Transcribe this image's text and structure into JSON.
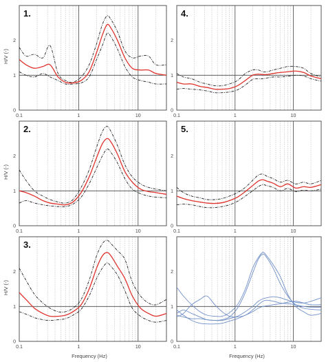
{
  "figure": {
    "ylabel": "H/V (-)",
    "xlabel": "Frequency (Hz)",
    "colors": {
      "mean": "#e0302a",
      "bounds": "#222222",
      "reference": "#444444",
      "grid": "#b9b9b9",
      "frame": "#444444",
      "individual": "#6f8fc9"
    }
  },
  "chart_data": [
    {
      "type": "line",
      "label": "1.",
      "xscale": "log",
      "xlim": [
        0.1,
        30
      ],
      "ylim": [
        0,
        3
      ],
      "yticks": [
        0,
        1,
        2
      ],
      "xticks": [
        0.1,
        1,
        10
      ],
      "x": [
        0.1,
        0.13,
        0.18,
        0.25,
        0.33,
        0.45,
        0.6,
        0.8,
        1.1,
        1.5,
        2,
        2.5,
        3,
        3.5,
        4.5,
        6,
        8,
        11,
        15,
        20,
        30
      ],
      "series": [
        {
          "role": "upper",
          "values": [
            1.8,
            1.55,
            1.6,
            1.5,
            1.85,
            1.05,
            0.85,
            0.8,
            0.95,
            1.3,
            1.9,
            2.45,
            2.7,
            2.6,
            2.25,
            1.7,
            1.5,
            1.55,
            1.55,
            1.3,
            1.3
          ]
        },
        {
          "role": "mean",
          "values": [
            1.45,
            1.3,
            1.2,
            1.25,
            1.3,
            0.95,
            0.8,
            0.78,
            0.85,
            1.1,
            1.65,
            2.15,
            2.45,
            2.35,
            2.0,
            1.5,
            1.2,
            1.15,
            1.15,
            1.05,
            1.0
          ]
        },
        {
          "role": "lower",
          "values": [
            1.1,
            1.0,
            0.95,
            1.05,
            0.95,
            0.85,
            0.75,
            0.75,
            0.78,
            0.95,
            1.45,
            1.85,
            2.2,
            2.1,
            1.75,
            1.25,
            0.95,
            0.85,
            0.8,
            0.75,
            0.75
          ]
        }
      ]
    },
    {
      "type": "line",
      "label": "4.",
      "xscale": "log",
      "xlim": [
        0.1,
        30
      ],
      "ylim": [
        0,
        3
      ],
      "yticks": [
        0,
        1,
        2
      ],
      "xticks": [
        0.1,
        1,
        10
      ],
      "x": [
        0.1,
        0.13,
        0.18,
        0.25,
        0.33,
        0.45,
        0.6,
        0.8,
        1.1,
        1.5,
        2,
        2.5,
        3,
        3.5,
        4.5,
        6,
        8,
        11,
        15,
        20,
        30
      ],
      "series": [
        {
          "role": "upper",
          "values": [
            1.05,
            0.95,
            0.9,
            0.8,
            0.75,
            0.7,
            0.7,
            0.75,
            0.85,
            1.05,
            1.15,
            1.15,
            1.1,
            1.1,
            1.15,
            1.2,
            1.25,
            1.25,
            1.2,
            1.05,
            0.95
          ]
        },
        {
          "role": "mean",
          "values": [
            0.8,
            0.75,
            0.75,
            0.68,
            0.65,
            0.6,
            0.6,
            0.62,
            0.7,
            0.85,
            1.0,
            1.03,
            1.02,
            1.02,
            1.05,
            1.08,
            1.1,
            1.12,
            1.08,
            0.98,
            0.9
          ]
        },
        {
          "role": "lower",
          "values": [
            0.6,
            0.62,
            0.6,
            0.58,
            0.55,
            0.5,
            0.5,
            0.52,
            0.58,
            0.72,
            0.88,
            0.9,
            0.9,
            0.92,
            0.95,
            0.95,
            0.97,
            1.0,
            0.98,
            0.9,
            0.83
          ]
        }
      ]
    },
    {
      "type": "line",
      "label": "2.",
      "xscale": "log",
      "xlim": [
        0.1,
        30
      ],
      "ylim": [
        0,
        3
      ],
      "yticks": [
        0,
        1,
        2
      ],
      "xticks": [
        0.1,
        1,
        10
      ],
      "x": [
        0.1,
        0.13,
        0.18,
        0.25,
        0.33,
        0.45,
        0.6,
        0.8,
        1.1,
        1.5,
        2,
        2.5,
        3,
        3.5,
        4.5,
        6,
        8,
        11,
        15,
        20,
        30
      ],
      "series": [
        {
          "role": "upper",
          "values": [
            1.6,
            1.3,
            1.0,
            0.85,
            0.75,
            0.68,
            0.65,
            0.75,
            1.1,
            1.6,
            2.25,
            2.7,
            2.85,
            2.7,
            2.3,
            1.75,
            1.4,
            1.2,
            1.1,
            1.05,
            1.0
          ]
        },
        {
          "role": "mean",
          "values": [
            1.0,
            0.95,
            0.85,
            0.72,
            0.65,
            0.62,
            0.6,
            0.68,
            0.95,
            1.4,
            1.95,
            2.35,
            2.5,
            2.4,
            2.05,
            1.55,
            1.25,
            1.05,
            0.98,
            0.95,
            0.9
          ]
        },
        {
          "role": "lower",
          "values": [
            0.65,
            0.72,
            0.65,
            0.6,
            0.57,
            0.55,
            0.55,
            0.62,
            0.82,
            1.2,
            1.65,
            2.0,
            2.2,
            2.1,
            1.8,
            1.35,
            1.05,
            0.92,
            0.85,
            0.82,
            0.8
          ]
        }
      ]
    },
    {
      "type": "line",
      "label": "5.",
      "xscale": "log",
      "xlim": [
        0.1,
        30
      ],
      "ylim": [
        0,
        3
      ],
      "yticks": [
        0,
        1,
        2
      ],
      "xticks": [
        0.1,
        1,
        10
      ],
      "x": [
        0.1,
        0.13,
        0.18,
        0.25,
        0.33,
        0.45,
        0.6,
        0.8,
        1.1,
        1.5,
        2,
        2.5,
        3,
        3.5,
        4.5,
        6,
        8,
        11,
        15,
        20,
        30
      ],
      "series": [
        {
          "role": "upper",
          "values": [
            1.1,
            0.95,
            0.85,
            0.8,
            0.75,
            0.75,
            0.78,
            0.85,
            0.95,
            1.1,
            1.3,
            1.45,
            1.48,
            1.42,
            1.35,
            1.25,
            1.3,
            1.2,
            1.25,
            1.2,
            1.3
          ]
        },
        {
          "role": "mean",
          "values": [
            0.85,
            0.78,
            0.72,
            0.68,
            0.65,
            0.64,
            0.66,
            0.72,
            0.82,
            0.98,
            1.15,
            1.28,
            1.32,
            1.28,
            1.22,
            1.12,
            1.2,
            1.08,
            1.12,
            1.1,
            1.18
          ]
        },
        {
          "role": "lower",
          "values": [
            0.6,
            0.62,
            0.6,
            0.55,
            0.52,
            0.52,
            0.55,
            0.6,
            0.7,
            0.85,
            1.0,
            1.12,
            1.18,
            1.15,
            1.1,
            1.0,
            1.07,
            0.98,
            1.02,
            1.0,
            1.05
          ]
        }
      ]
    },
    {
      "type": "line",
      "label": "3.",
      "xscale": "log",
      "xlim": [
        0.1,
        30
      ],
      "ylim": [
        0,
        3
      ],
      "yticks": [
        0,
        1,
        2
      ],
      "xticks": [
        0.1,
        1,
        10
      ],
      "x": [
        0.1,
        0.13,
        0.18,
        0.25,
        0.33,
        0.45,
        0.6,
        0.8,
        1.1,
        1.5,
        2,
        2.5,
        3,
        3.5,
        4.5,
        6,
        8,
        11,
        15,
        20,
        30
      ],
      "series": [
        {
          "role": "upper",
          "values": [
            2.1,
            1.75,
            1.35,
            1.1,
            0.95,
            0.85,
            0.85,
            0.95,
            1.2,
            1.75,
            2.45,
            2.8,
            2.9,
            2.8,
            2.6,
            2.35,
            1.7,
            1.3,
            1.1,
            1.05,
            1.2
          ]
        },
        {
          "role": "mean",
          "values": [
            1.4,
            1.2,
            0.95,
            0.8,
            0.72,
            0.72,
            0.75,
            0.85,
            1.05,
            1.5,
            2.1,
            2.45,
            2.55,
            2.45,
            2.15,
            1.8,
            1.3,
            0.95,
            0.8,
            0.72,
            0.8
          ]
        },
        {
          "role": "lower",
          "values": [
            0.85,
            0.78,
            0.68,
            0.62,
            0.6,
            0.62,
            0.65,
            0.75,
            0.92,
            1.3,
            1.8,
            2.1,
            2.25,
            2.15,
            1.9,
            1.45,
            0.95,
            0.72,
            0.6,
            0.55,
            0.6
          ]
        }
      ]
    },
    {
      "type": "line",
      "label": "",
      "xscale": "log",
      "xlim": [
        0.1,
        30
      ],
      "ylim": [
        0,
        3
      ],
      "yticks": [
        0,
        1,
        2
      ],
      "xticks": [
        0.1,
        1,
        10
      ],
      "x": [
        0.1,
        0.13,
        0.18,
        0.25,
        0.33,
        0.45,
        0.6,
        0.8,
        1.1,
        1.5,
        2,
        2.5,
        3,
        3.5,
        4.5,
        6,
        8,
        11,
        15,
        20,
        30
      ],
      "series": [
        {
          "role": "individual",
          "values": [
            1.55,
            1.3,
            1.05,
            0.85,
            0.75,
            0.72,
            0.72,
            0.82,
            1.05,
            1.5,
            2.1,
            2.4,
            2.55,
            2.45,
            2.2,
            1.85,
            1.35,
            1.0,
            0.85,
            0.75,
            0.8
          ]
        },
        {
          "role": "individual",
          "values": [
            0.8,
            0.9,
            0.8,
            0.7,
            0.62,
            0.6,
            0.62,
            0.7,
            0.95,
            1.4,
            1.95,
            2.35,
            2.5,
            2.4,
            2.1,
            1.65,
            1.3,
            1.05,
            0.95,
            0.92,
            0.9
          ]
        },
        {
          "role": "individual",
          "values": [
            0.75,
            0.7,
            0.65,
            0.65,
            0.62,
            0.6,
            0.6,
            0.65,
            0.72,
            0.85,
            1.0,
            1.15,
            1.22,
            1.25,
            1.28,
            1.25,
            1.18,
            1.12,
            1.1,
            1.15,
            1.25
          ]
        },
        {
          "role": "individual",
          "values": [
            0.7,
            0.8,
            1.05,
            1.2,
            1.3,
            1.05,
            0.85,
            0.72,
            0.7,
            0.75,
            0.9,
            1.05,
            1.15,
            1.18,
            1.15,
            1.1,
            1.08,
            1.05,
            1.0,
            0.98,
            0.98
          ]
        },
        {
          "role": "individual",
          "values": [
            0.9,
            0.75,
            0.6,
            0.52,
            0.5,
            0.5,
            0.52,
            0.58,
            0.65,
            0.75,
            0.85,
            0.95,
            1.0,
            1.02,
            1.05,
            1.08,
            1.12,
            1.15,
            1.1,
            1.05,
            1.05
          ]
        }
      ]
    }
  ]
}
